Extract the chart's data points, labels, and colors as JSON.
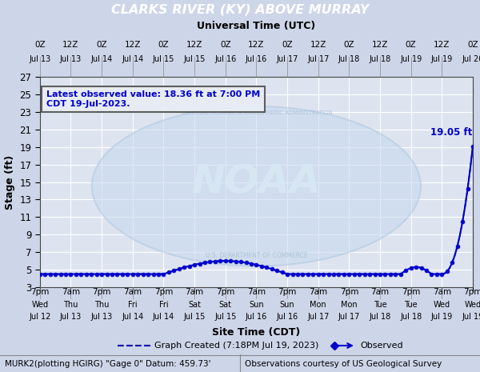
{
  "title": "CLARKS RIVER (KY) ABOVE MURRAY",
  "title_bg": "#000080",
  "title_color": "#ffffff",
  "utc_label": "Universal Time (UTC)",
  "cdt_label": "Site Time (CDT)",
  "ylabel": "Stage (ft)",
  "bg_color": "#cdd5e8",
  "plot_bg": "#dde4f0",
  "grid_color": "#ffffff",
  "ylim": [
    3,
    27
  ],
  "yticks": [
    3,
    5,
    7,
    9,
    11,
    13,
    15,
    17,
    19,
    21,
    23,
    25,
    27
  ],
  "annotation_text": "Latest observed value: 18.36 ft at 7:00 PM\nCDT 19-Jul-2023.",
  "annotation_box_edge": "#555555",
  "annotation_box_face": "#e8edf5",
  "annotation_text_color": "#0000cc",
  "crest_label": "19.05 ft",
  "legend_created": "Graph Created (7:18PM Jul 19, 2023)",
  "legend_observed": "Observed",
  "footer_left": "MURK2(plotting HGIRG) \"Gage 0\" Datum: 459.73'",
  "footer_right": "Observations courtesy of US Geological Survey",
  "line_color": "#0000cc",
  "marker_color": "#0000cc",
  "dashed_color": "#0000aa",
  "utc_ticks_labels": [
    "0Z",
    "12Z",
    "0Z",
    "12Z",
    "0Z",
    "12Z",
    "0Z",
    "12Z",
    "0Z",
    "12Z",
    "0Z",
    "12Z",
    "0Z",
    "12Z",
    "0Z"
  ],
  "utc_ticks_dates": [
    "Jul 13",
    "Jul 13",
    "Jul 14",
    "Jul 14",
    "Jul 15",
    "Jul 15",
    "Jul 16",
    "Jul 16",
    "Jul 17",
    "Jul 17",
    "Jul 18",
    "Jul 18",
    "Jul 19",
    "Jul 19",
    "Jul 20"
  ],
  "cdt_ticks_labels": [
    "7pm",
    "7am",
    "7pm",
    "7am",
    "7pm",
    "7am",
    "7pm",
    "7am",
    "7pm",
    "7am",
    "7pm",
    "7am",
    "7pm",
    "7am",
    "7pm"
  ],
  "cdt_ticks_days": [
    "Wed",
    "Thu",
    "Thu",
    "Fri",
    "Fri",
    "Sat",
    "Sat",
    "Sun",
    "Sun",
    "Mon",
    "Mon",
    "Tue",
    "Tue",
    "Wed",
    "Wed"
  ],
  "cdt_ticks_dates": [
    "Jul 12",
    "Jul 13",
    "Jul 13",
    "Jul 14",
    "Jul 14",
    "Jul 15",
    "Jul 15",
    "Jul 16",
    "Jul 16",
    "Jul 17",
    "Jul 17",
    "Jul 18",
    "Jul 18",
    "Jul 19",
    "Jul 19"
  ],
  "noaa_color": "#b8cce4",
  "noaa_text_color": "#c8d8ec"
}
